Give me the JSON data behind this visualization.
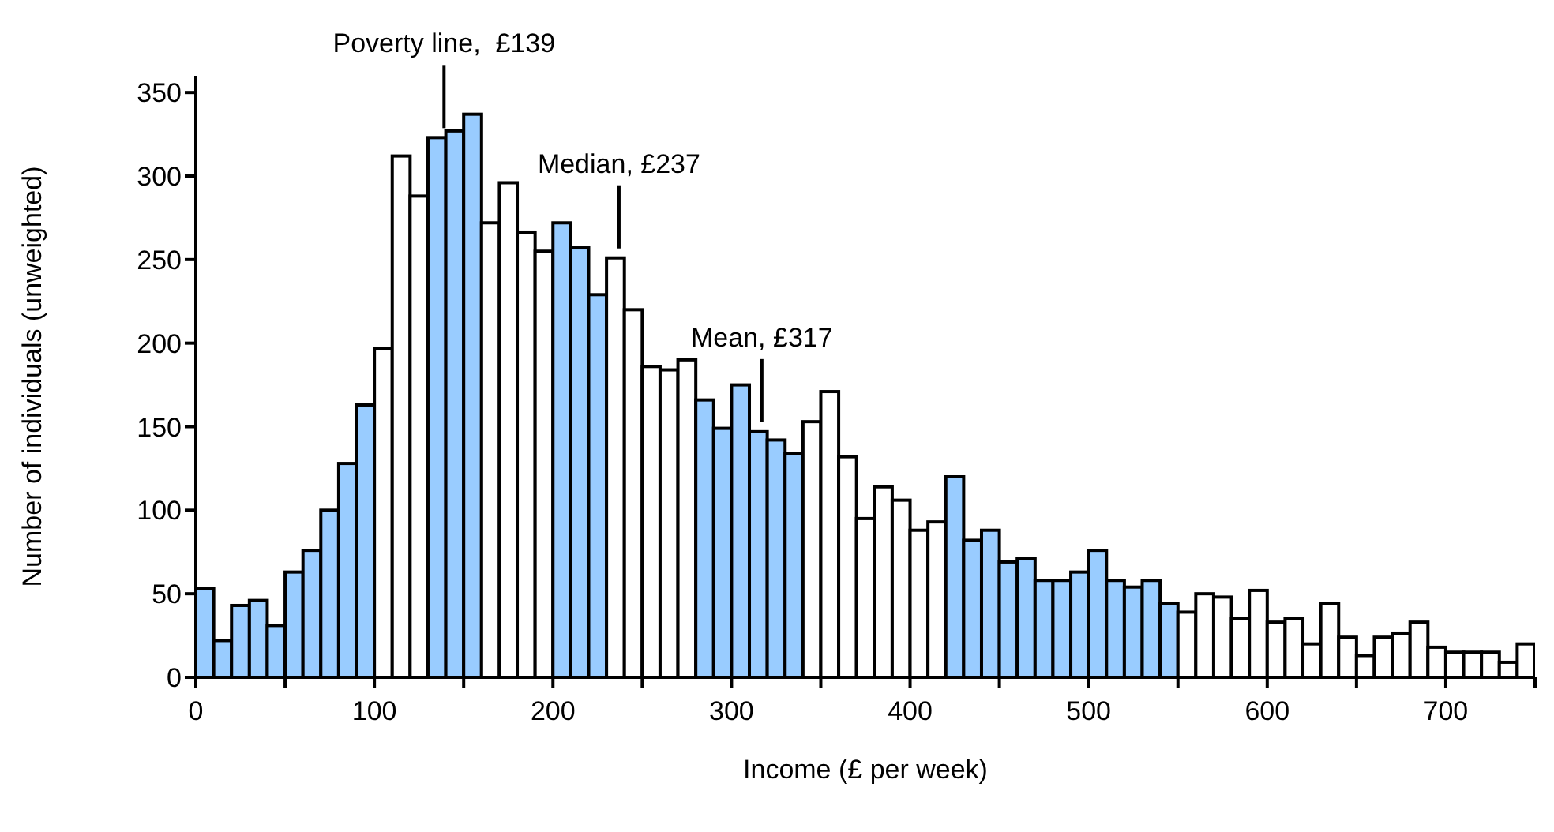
{
  "chart_data": {
    "type": "histogram",
    "xlabel": "Income (£ per week)",
    "ylabel": "Number of individuals (unweighted)",
    "bins": [
      0,
      10,
      20,
      30,
      40,
      50,
      60,
      70,
      80,
      90,
      100,
      110,
      120,
      130,
      140,
      150,
      160,
      170,
      180,
      190,
      200,
      210,
      220,
      230,
      240,
      250,
      260,
      270,
      280,
      290,
      300,
      310,
      320,
      330,
      340,
      350,
      360,
      370,
      380,
      390,
      400,
      410,
      420,
      430,
      440,
      450,
      460,
      470,
      480,
      490,
      500,
      510,
      520,
      530,
      540,
      550,
      560,
      570,
      580,
      590,
      600,
      610,
      620,
      630,
      640,
      650,
      660,
      670,
      680,
      690,
      700,
      710,
      720,
      730,
      740,
      750
    ],
    "values": [
      53,
      22,
      43,
      46,
      31,
      63,
      76,
      100,
      128,
      163,
      197,
      312,
      288,
      323,
      327,
      337,
      272,
      296,
      266,
      255,
      272,
      257,
      229,
      251,
      220,
      186,
      184,
      190,
      166,
      149,
      175,
      147,
      142,
      134,
      153,
      171,
      132,
      95,
      114,
      106,
      88,
      93,
      120,
      82,
      88,
      69,
      71,
      58,
      58,
      63,
      76,
      58,
      54,
      58,
      44,
      39,
      50,
      48,
      35,
      52,
      33,
      35,
      20,
      44,
      24,
      13,
      24,
      26,
      33,
      18,
      15,
      15,
      15,
      9,
      20
    ],
    "colors": [
      "#99ccff",
      "#99ccff",
      "#99ccff",
      "#99ccff",
      "#99ccff",
      "#99ccff",
      "#99ccff",
      "#99ccff",
      "#99ccff",
      "#99ccff",
      "#ffffff",
      "#ffffff",
      "#ffffff",
      "#99ccff",
      "#99ccff",
      "#99ccff",
      "#ffffff",
      "#ffffff",
      "#ffffff",
      "#ffffff",
      "#99ccff",
      "#99ccff",
      "#99ccff",
      "#ffffff",
      "#ffffff",
      "#ffffff",
      "#ffffff",
      "#ffffff",
      "#99ccff",
      "#99ccff",
      "#99ccff",
      "#99ccff",
      "#99ccff",
      "#99ccff",
      "#ffffff",
      "#ffffff",
      "#ffffff",
      "#ffffff",
      "#ffffff",
      "#ffffff",
      "#ffffff",
      "#ffffff",
      "#99ccff",
      "#99ccff",
      "#99ccff",
      "#99ccff",
      "#99ccff",
      "#99ccff",
      "#99ccff",
      "#99ccff",
      "#99ccff",
      "#99ccff",
      "#99ccff",
      "#99ccff",
      "#99ccff",
      "#ffffff",
      "#ffffff",
      "#ffffff",
      "#ffffff",
      "#ffffff",
      "#ffffff",
      "#ffffff",
      "#ffffff",
      "#ffffff",
      "#ffffff",
      "#ffffff",
      "#ffffff",
      "#ffffff",
      "#ffffff",
      "#ffffff",
      "#ffffff",
      "#ffffff",
      "#ffffff",
      "#ffffff",
      "#ffffff"
    ],
    "xlim": [
      0,
      750
    ],
    "xticks": [
      0,
      {
        "value": 50,
        "label": null
      },
      100,
      {
        "value": 150,
        "label": null
      },
      200,
      {
        "value": 250,
        "label": null
      },
      300,
      {
        "value": 350,
        "label": null
      },
      400,
      {
        "value": 450,
        "label": null
      },
      500,
      {
        "value": 550,
        "label": null
      },
      600,
      {
        "value": 650,
        "label": null
      },
      700,
      {
        "value": 750,
        "label": null
      }
    ],
    "ylim": [
      0,
      360
    ],
    "yticks": [
      0,
      50,
      100,
      150,
      200,
      250,
      300,
      350
    ],
    "annotations": [
      {
        "text": "Poverty line,  £139",
        "x": 139,
        "y": 323
      },
      {
        "text": "Median, £237",
        "x": 237,
        "y": 251
      },
      {
        "text": "Mean, £317",
        "x": 317,
        "y": 147
      }
    ],
    "grid": false,
    "legend": false
  }
}
